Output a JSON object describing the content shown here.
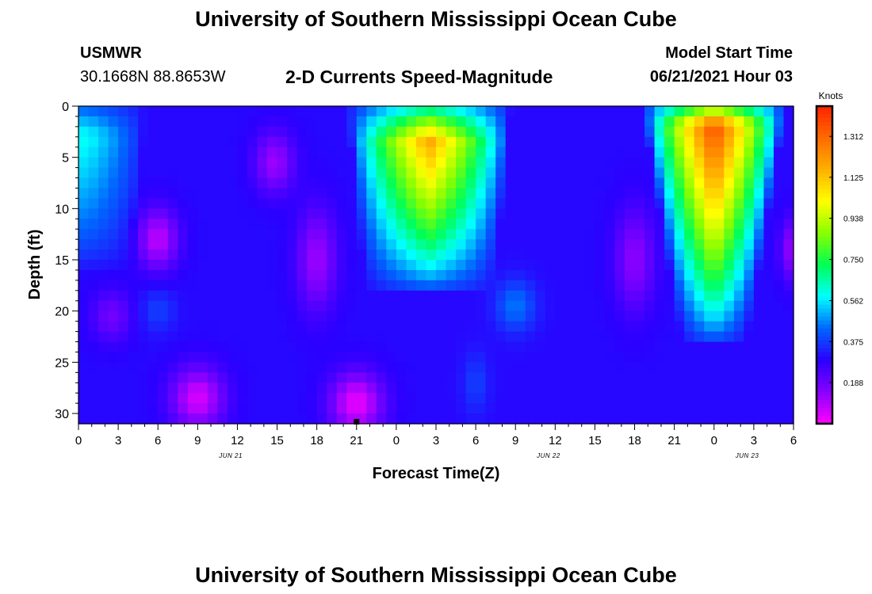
{
  "header": {
    "title": "University of Southern Mississippi Ocean Cube",
    "station": "USMWR",
    "coords": "30.1668N  88.8653W",
    "plot_title": "2-D Currents Speed-Magnitude",
    "model_label": "Model Start Time",
    "model_time": "06/21/2021 Hour 03"
  },
  "footer": {
    "title": "University of Southern Mississippi Ocean Cube"
  },
  "chart_data": {
    "type": "heatmap",
    "title": "2-D Currents Speed-Magnitude",
    "xlabel": "Forecast Time(Z)",
    "ylabel": "Depth (ft)",
    "x_tick_labels": [
      "0",
      "3",
      "6",
      "9",
      "12",
      "15",
      "18",
      "21",
      "0",
      "3",
      "6",
      "9",
      "12",
      "15",
      "18",
      "21",
      "0",
      "3",
      "6"
    ],
    "x_date_labels": [
      {
        "text": "JUN 21",
        "at_hour": 11.5
      },
      {
        "text": "JUN 22",
        "at_hour": 35.5
      },
      {
        "text": "JUN 23",
        "at_hour": 50.5
      }
    ],
    "xlim_hours": [
      0,
      54
    ],
    "y_ticks": [
      0,
      5,
      10,
      15,
      20,
      25,
      30
    ],
    "ylim": [
      0,
      31
    ],
    "y_inverted": true,
    "colorbar": {
      "unit": "Knots",
      "range": [
        0.0,
        1.45
      ],
      "tick_labels": [
        "1.312",
        "1.125",
        "0.938",
        "0.750",
        "0.562",
        "0.375",
        "0.188"
      ],
      "tick_values": [
        1.312,
        1.125,
        0.938,
        0.75,
        0.562,
        0.375,
        0.188
      ],
      "colors": [
        "#ff00ff",
        "#8800ff",
        "#2a00ff",
        "#0066ff",
        "#00ffff",
        "#00ff55",
        "#88ff00",
        "#ffff00",
        "#ffb000",
        "#ff6a00",
        "#ff2200"
      ]
    },
    "current_time_marker_hour": 21,
    "field": {
      "background_speed": 0.3,
      "features": [
        {
          "center_hour": 26.5,
          "center_depth_ft": 3.5,
          "peak_knots": 1.18,
          "base_halfwidth_hours": 4.8,
          "top_extra_hours": 1.4,
          "bottom_depth_ft": 18.5
        },
        {
          "center_hour": 48.0,
          "center_depth_ft": 2.0,
          "peak_knots": 1.38,
          "base_halfwidth_hours": 2.4,
          "top_extra_hours": 3.0,
          "bottom_depth_ft": 23.5
        },
        {
          "center_hour": 0.5,
          "center_depth_ft": 3.0,
          "peak_knots": 0.6,
          "base_halfwidth_hours": 4.0,
          "top_extra_hours": 0.5,
          "bottom_depth_ft": 16.0
        },
        {
          "center_hour": 14.8,
          "center_depth_ft": 5.5,
          "peak_knots": 0.12,
          "spread_hours": 1.5,
          "spread_ft": 3.0
        },
        {
          "center_hour": 6.0,
          "center_depth_ft": 13.0,
          "peak_knots": 0.08,
          "spread_hours": 1.5,
          "spread_ft": 3.0
        },
        {
          "center_hour": 6.0,
          "center_depth_ft": 20.0,
          "peak_knots": 0.38,
          "spread_hours": 1.3,
          "spread_ft": 2.0
        },
        {
          "center_hour": 33.0,
          "center_depth_ft": 19.5,
          "peak_knots": 0.45,
          "spread_hours": 1.5,
          "spread_ft": 2.5
        },
        {
          "center_hour": 30.0,
          "center_depth_ft": 27.0,
          "peak_knots": 0.38,
          "spread_hours": 1.0,
          "spread_ft": 3.0
        },
        {
          "center_hour": 9.0,
          "center_depth_ft": 28.5,
          "peak_knots": 0.05,
          "spread_hours": 2.0,
          "spread_ft": 3.0
        },
        {
          "center_hour": 21.0,
          "center_depth_ft": 29.0,
          "peak_knots": 0.03,
          "spread_hours": 2.0,
          "spread_ft": 3.0
        },
        {
          "center_hour": 18.0,
          "center_depth_ft": 15.0,
          "peak_knots": 0.12,
          "spread_hours": 1.5,
          "spread_ft": 5.0
        },
        {
          "center_hour": 42.0,
          "center_depth_ft": 15.0,
          "peak_knots": 0.14,
          "spread_hours": 1.5,
          "spread_ft": 5.0
        },
        {
          "center_hour": 54.0,
          "center_depth_ft": 14.0,
          "peak_knots": 0.12,
          "spread_hours": 1.0,
          "spread_ft": 3.0
        },
        {
          "center_hour": 2.5,
          "center_depth_ft": 20.5,
          "peak_knots": 0.18,
          "spread_hours": 1.5,
          "spread_ft": 2.5
        }
      ]
    }
  }
}
